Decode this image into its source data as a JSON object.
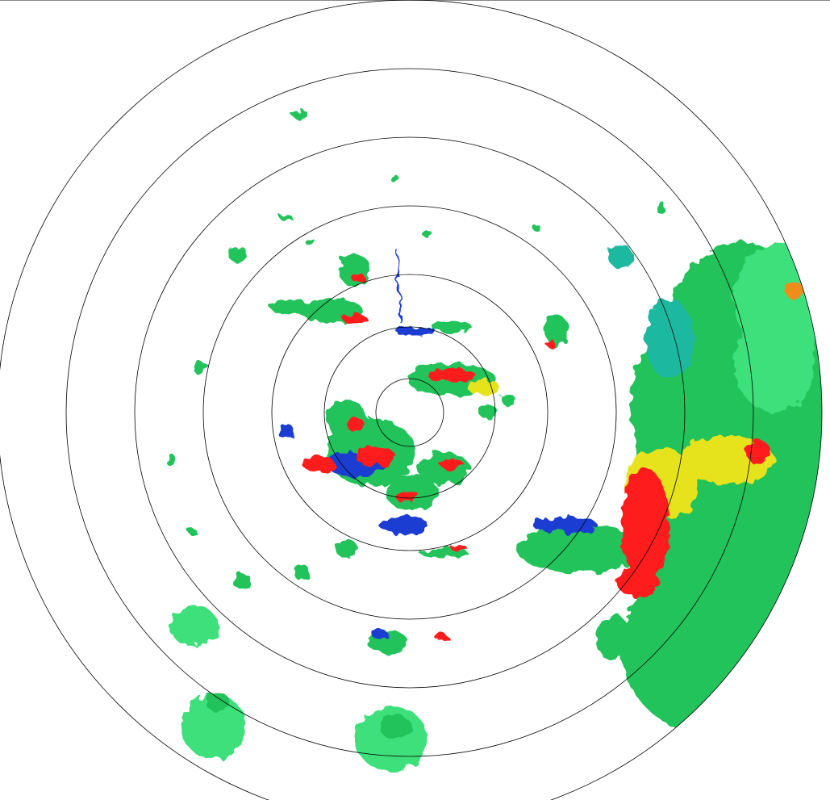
{
  "radar": {
    "type": "ppi-reflectivity",
    "range_ring_count": 7,
    "ring_color": "#000000",
    "palette": {
      "blue": "#1e3cd2",
      "teal": "#1fb8a0",
      "green": "#22c35a",
      "lightgreen": "#3ee07a",
      "yellow": "#e6e21e",
      "orange": "#f08c1e",
      "red": "#ff1e1e"
    }
  }
}
